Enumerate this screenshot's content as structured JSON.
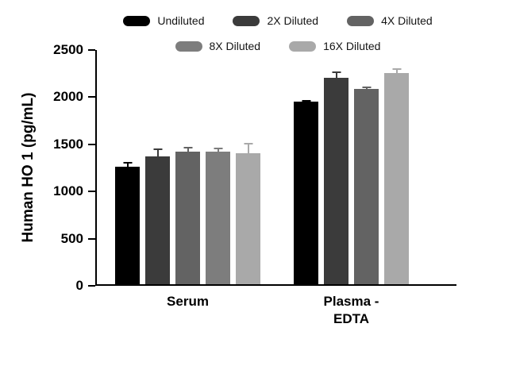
{
  "chart_data": {
    "type": "bar",
    "title": "",
    "xlabel": "",
    "ylabel": "Human HO 1 (pg/mL)",
    "ylim": [
      0,
      2500
    ],
    "yticks": [
      0,
      500,
      1000,
      1500,
      2000,
      2500
    ],
    "grid": false,
    "legend_position": "top",
    "legend_rows": [
      3,
      2
    ],
    "categories": [
      "Serum",
      "Plasma -\nEDTA"
    ],
    "series": [
      {
        "name": "Undiluted",
        "color": "#000000",
        "values": [
          1265,
          1950
        ],
        "errors": [
          45,
          20
        ]
      },
      {
        "name": "2X Diluted",
        "color": "#3b3b3b",
        "values": [
          1370,
          2205
        ],
        "errors": [
          85,
          65
        ]
      },
      {
        "name": "4X Diluted",
        "color": "#636363",
        "values": [
          1420,
          2090
        ],
        "errors": [
          50,
          25
        ]
      },
      {
        "name": "8X Diluted",
        "color": "#7d7d7d",
        "values": [
          1420,
          null
        ],
        "errors": [
          45,
          null
        ]
      },
      {
        "name": "16X Diluted",
        "color": "#a9a9a9",
        "values": [
          1405,
          2260
        ],
        "errors": [
          110,
          45
        ]
      }
    ]
  }
}
